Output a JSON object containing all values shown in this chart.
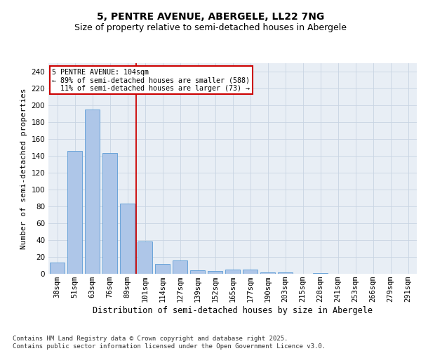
{
  "title_line1": "5, PENTRE AVENUE, ABERGELE, LL22 7NG",
  "title_line2": "Size of property relative to semi-detached houses in Abergele",
  "xlabel": "Distribution of semi-detached houses by size in Abergele",
  "ylabel": "Number of semi-detached properties",
  "categories": [
    "38sqm",
    "51sqm",
    "63sqm",
    "76sqm",
    "89sqm",
    "101sqm",
    "114sqm",
    "127sqm",
    "139sqm",
    "152sqm",
    "165sqm",
    "177sqm",
    "190sqm",
    "203sqm",
    "215sqm",
    "228sqm",
    "241sqm",
    "253sqm",
    "266sqm",
    "279sqm",
    "291sqm"
  ],
  "values": [
    13,
    146,
    195,
    143,
    83,
    38,
    12,
    16,
    4,
    3,
    5,
    5,
    2,
    2,
    0,
    1,
    0,
    0,
    0,
    0,
    0
  ],
  "bar_color": "#aec6e8",
  "bar_edge_color": "#5b9bd5",
  "grid_color": "#c8d4e3",
  "background_color": "#e8eef5",
  "vline_index": 5,
  "vline_color": "#cc0000",
  "annotation_text": "5 PENTRE AVENUE: 104sqm\n← 89% of semi-detached houses are smaller (588)\n  11% of semi-detached houses are larger (73) →",
  "annotation_box_color": "#ffffff",
  "annotation_box_edge": "#cc0000",
  "footnote": "Contains HM Land Registry data © Crown copyright and database right 2025.\nContains public sector information licensed under the Open Government Licence v3.0.",
  "ylim": [
    0,
    250
  ],
  "yticks": [
    0,
    20,
    40,
    60,
    80,
    100,
    120,
    140,
    160,
    180,
    200,
    220,
    240
  ],
  "title_fontsize": 10,
  "subtitle_fontsize": 9,
  "xlabel_fontsize": 8.5,
  "ylabel_fontsize": 8,
  "tick_fontsize": 7.5,
  "footnote_fontsize": 6.5
}
